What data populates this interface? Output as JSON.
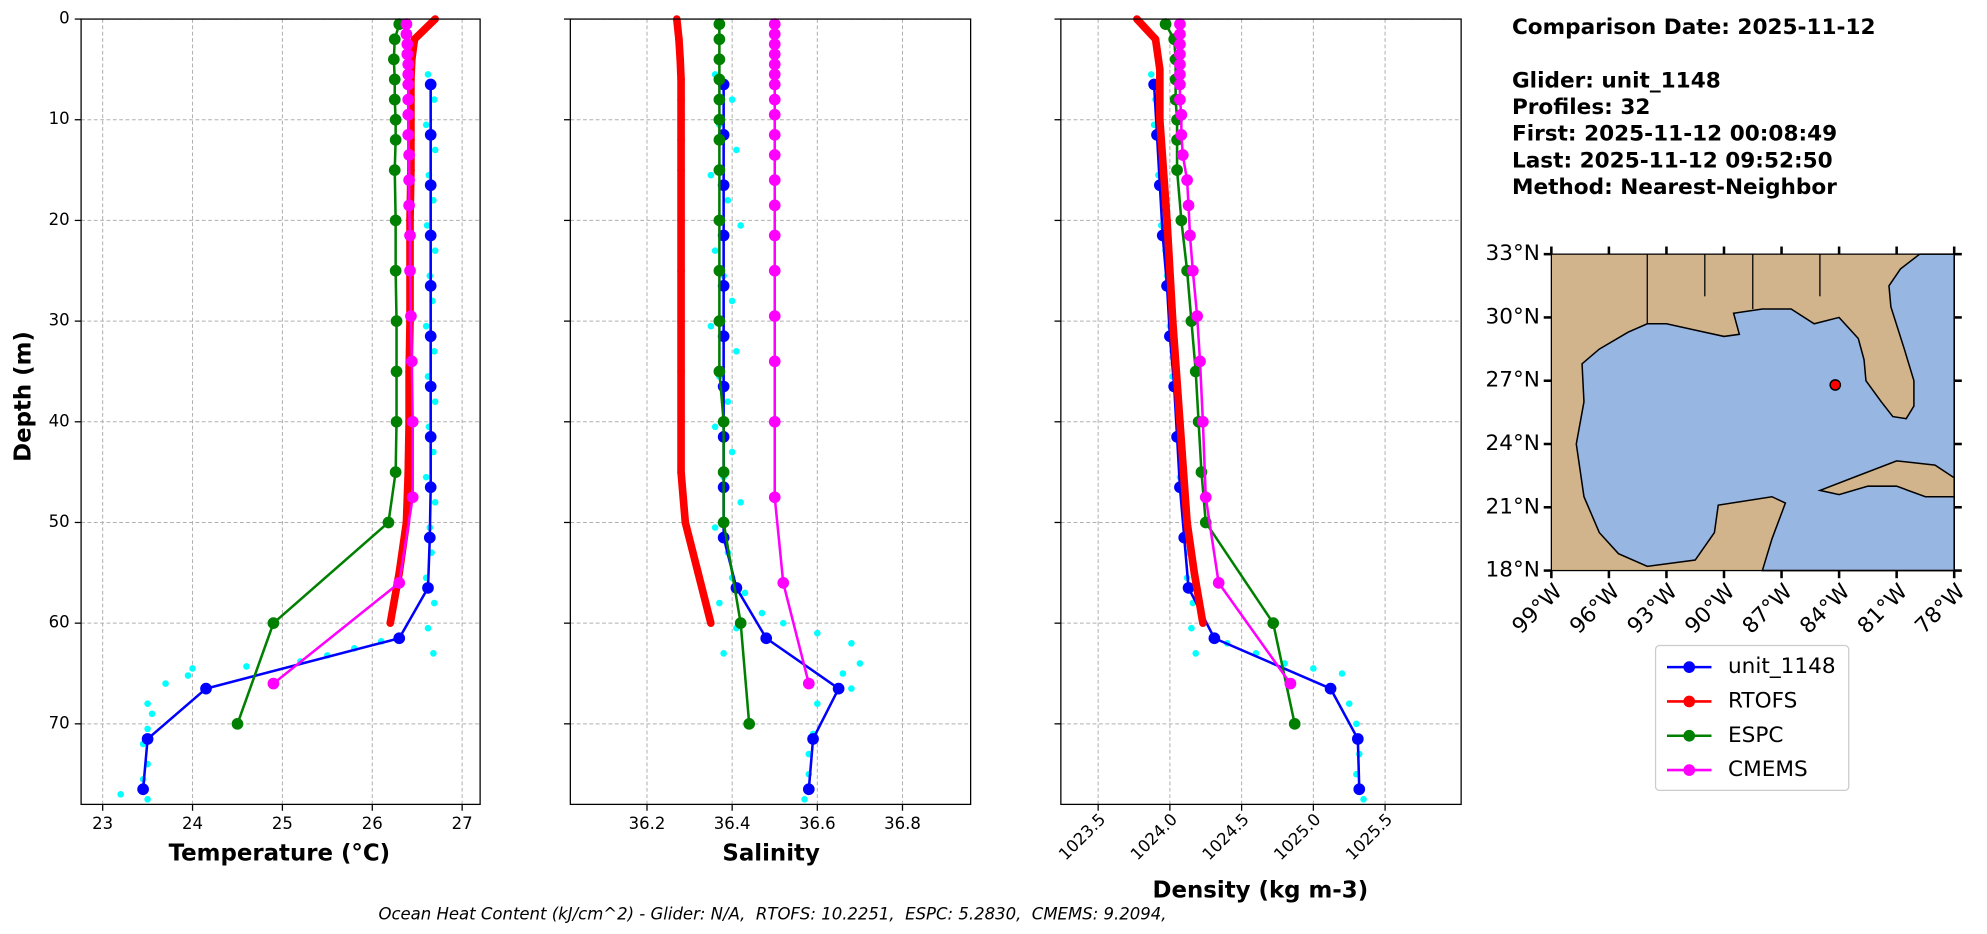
{
  "chart_data": [
    {
      "type": "line",
      "xlabel": "Temperature (°C)",
      "ylabel": "Depth (m)",
      "xlim": [
        22.76,
        27.2
      ],
      "xticks": [
        23,
        24,
        25,
        26,
        27
      ],
      "ylim": [
        78,
        0
      ],
      "yticks": [
        0,
        10,
        20,
        30,
        40,
        50,
        60,
        70
      ],
      "grid": true,
      "points": {
        "color": "#00ffff",
        "x": [
          26.62,
          26.69,
          26.6,
          26.7,
          26.63,
          26.68,
          26.61,
          26.7,
          26.64,
          26.67,
          26.6,
          26.69,
          26.62,
          26.7,
          26.63,
          26.68,
          26.6,
          26.7,
          26.64,
          26.66,
          26.6,
          26.69,
          26.62,
          26.68,
          26.1,
          25.8,
          25.5,
          25.2,
          24.6,
          24.0,
          23.95,
          23.7,
          23.5,
          23.55,
          23.5,
          23.45,
          23.5,
          23.45,
          23.2,
          23.5
        ],
        "y": [
          5.5,
          8,
          10.5,
          13,
          15.5,
          18,
          20.5,
          23,
          25.5,
          28,
          30.5,
          33,
          35.5,
          38,
          40.5,
          43,
          45.5,
          48,
          50.5,
          53,
          55.5,
          58,
          60.5,
          63,
          61.8,
          62.5,
          63.2,
          63.8,
          64.3,
          64.5,
          65.2,
          66,
          68,
          69,
          70.5,
          72,
          74,
          75.5,
          77,
          77.5
        ]
      },
      "series": [
        {
          "name": "unit_1148",
          "color": "#0000ff",
          "y": [
            6.5,
            11.5,
            16.5,
            21.5,
            26.5,
            31.5,
            36.5,
            41.5,
            46.5,
            51.5,
            56.5,
            61.5,
            66.5,
            71.5,
            76.5
          ],
          "values": [
            26.65,
            26.65,
            26.65,
            26.65,
            26.65,
            26.65,
            26.65,
            26.65,
            26.65,
            26.64,
            26.62,
            26.3,
            24.15,
            23.5,
            23.45
          ]
        },
        {
          "name": "RTOFS",
          "color": "#ff0000",
          "y": [
            0,
            2,
            4,
            6,
            8,
            10,
            12,
            15,
            20,
            25,
            30,
            35,
            40,
            45,
            50,
            55,
            60
          ],
          "values": [
            26.7,
            26.47,
            26.44,
            26.43,
            26.43,
            26.43,
            26.43,
            26.43,
            26.42,
            26.42,
            26.42,
            26.41,
            26.41,
            26.4,
            26.38,
            26.3,
            26.2
          ]
        },
        {
          "name": "ESPC",
          "color": "#008000",
          "y": [
            0.5,
            2,
            4,
            6,
            8,
            10,
            12,
            15,
            20,
            25,
            30,
            35,
            40,
            45,
            50,
            60,
            70
          ],
          "values": [
            26.3,
            26.25,
            26.24,
            26.25,
            26.25,
            26.26,
            26.26,
            26.25,
            26.26,
            26.26,
            26.27,
            26.27,
            26.27,
            26.26,
            26.18,
            24.9,
            24.5
          ]
        },
        {
          "name": "CMEMS",
          "color": "#ff00ff",
          "y": [
            0.5,
            1.5,
            2.5,
            3.5,
            4.5,
            5.5,
            6.5,
            8,
            9.5,
            11.5,
            13.5,
            16,
            18.5,
            21.5,
            25,
            29.5,
            34,
            40,
            47.5,
            56,
            66
          ],
          "values": [
            26.38,
            26.38,
            26.39,
            26.39,
            26.4,
            26.4,
            26.4,
            26.4,
            26.4,
            26.4,
            26.41,
            26.41,
            26.41,
            26.42,
            26.42,
            26.43,
            26.44,
            26.45,
            26.45,
            26.3,
            24.9
          ]
        }
      ]
    },
    {
      "type": "line",
      "xlabel": "Salinity",
      "xlim": [
        36.02,
        36.96
      ],
      "xticks": [
        36.2,
        36.4,
        36.6,
        36.8
      ],
      "ylim": [
        78,
        0
      ],
      "yticks": [
        0,
        10,
        20,
        30,
        40,
        50,
        60,
        70
      ],
      "grid": true,
      "points": {
        "color": "#00ffff",
        "x": [
          36.36,
          36.4,
          36.37,
          36.41,
          36.35,
          36.39,
          36.42,
          36.36,
          36.38,
          36.4,
          36.35,
          36.41,
          36.37,
          36.39,
          36.36,
          36.4,
          36.38,
          36.42,
          36.36,
          36.39,
          36.4,
          36.37,
          36.41,
          36.38,
          36.43,
          36.47,
          36.52,
          36.6,
          36.68,
          36.7,
          36.66,
          36.68,
          36.6,
          36.59,
          36.58,
          36.58,
          36.57
        ],
        "y": [
          5.5,
          8,
          10.5,
          13,
          15.5,
          18,
          20.5,
          23,
          25.5,
          28,
          30.5,
          33,
          35.5,
          38,
          40.5,
          43,
          45.5,
          48,
          50.5,
          53,
          55.5,
          58,
          60.5,
          63,
          57,
          59,
          60,
          61,
          62,
          64,
          65,
          66.5,
          68,
          71,
          73,
          75,
          77.5
        ]
      },
      "series": [
        {
          "color": "#0000ff",
          "y": [
            6.5,
            11.5,
            16.5,
            21.5,
            26.5,
            31.5,
            36.5,
            41.5,
            46.5,
            51.5,
            56.5,
            61.5,
            66.5,
            71.5,
            76.5
          ],
          "values": [
            36.38,
            36.38,
            36.38,
            36.38,
            36.38,
            36.38,
            36.38,
            36.38,
            36.38,
            36.38,
            36.41,
            36.48,
            36.65,
            36.59,
            36.58
          ]
        },
        {
          "color": "#ff0000",
          "y": [
            0,
            2,
            4,
            6,
            8,
            10,
            12,
            15,
            20,
            25,
            30,
            35,
            40,
            45,
            50,
            55,
            60
          ],
          "values": [
            36.27,
            36.275,
            36.278,
            36.28,
            36.28,
            36.28,
            36.28,
            36.28,
            36.28,
            36.28,
            36.28,
            36.28,
            36.28,
            36.28,
            36.29,
            36.32,
            36.35
          ]
        },
        {
          "color": "#008000",
          "y": [
            0.5,
            2,
            4,
            6,
            8,
            10,
            12,
            15,
            20,
            25,
            30,
            35,
            40,
            45,
            50,
            60,
            70
          ],
          "values": [
            36.37,
            36.37,
            36.37,
            36.37,
            36.37,
            36.37,
            36.37,
            36.37,
            36.37,
            36.37,
            36.37,
            36.37,
            36.38,
            36.38,
            36.38,
            36.42,
            36.44
          ]
        },
        {
          "color": "#ff00ff",
          "y": [
            0.5,
            1.5,
            2.5,
            3.5,
            4.5,
            5.5,
            6.5,
            8,
            9.5,
            11.5,
            13.5,
            16,
            18.5,
            21.5,
            25,
            29.5,
            34,
            40,
            47.5,
            56,
            66
          ],
          "values": [
            36.5,
            36.5,
            36.5,
            36.5,
            36.5,
            36.5,
            36.5,
            36.5,
            36.5,
            36.5,
            36.5,
            36.5,
            36.5,
            36.5,
            36.5,
            36.5,
            36.5,
            36.5,
            36.5,
            36.52,
            36.58
          ]
        }
      ]
    },
    {
      "type": "line",
      "xlabel": "Density (kg m-3)",
      "xlim": [
        1023.24,
        1026.03
      ],
      "xticks": [
        1023.5,
        {
          "value": 1024,
          "label": "1024.0"
        },
        1024.5,
        {
          "value": 1025,
          "label": "1025.0"
        },
        1025.5
      ],
      "ylim": [
        78,
        0
      ],
      "yticks": [
        0,
        10,
        20,
        30,
        40,
        50,
        60,
        70
      ],
      "grid": true,
      "points": {
        "color": "#00ffff",
        "x": [
          1023.87,
          1023.9,
          1023.89,
          1023.93,
          1023.92,
          1023.95,
          1023.94,
          1023.97,
          1023.98,
          1024.0,
          1024.0,
          1024.03,
          1024.02,
          1024.05,
          1024.06,
          1024.08,
          1024.07,
          1024.1,
          1024.11,
          1024.13,
          1024.12,
          1024.16,
          1024.15,
          1024.18,
          1024.4,
          1024.6,
          1024.8,
          1025.0,
          1025.2,
          1025.25,
          1025.3,
          1025.32,
          1025.3,
          1025.35
        ],
        "y": [
          5.5,
          8,
          10.5,
          13,
          15.5,
          18,
          20.5,
          23,
          25.5,
          28,
          30.5,
          33,
          35.5,
          38,
          40.5,
          43,
          45.5,
          48,
          50.5,
          53,
          55.5,
          58,
          60.5,
          63,
          62,
          63,
          64,
          64.5,
          65,
          68,
          70,
          73,
          75,
          77.5
        ]
      },
      "series": [
        {
          "color": "#0000ff",
          "y": [
            6.5,
            11.5,
            16.5,
            21.5,
            26.5,
            31.5,
            36.5,
            41.5,
            46.5,
            51.5,
            56.5,
            61.5,
            66.5,
            71.5,
            76.5
          ],
          "values": [
            1023.89,
            1023.91,
            1023.93,
            1023.95,
            1023.98,
            1024.0,
            1024.03,
            1024.05,
            1024.07,
            1024.1,
            1024.13,
            1024.31,
            1025.12,
            1025.31,
            1025.32
          ]
        },
        {
          "color": "#ff0000",
          "y": [
            0,
            2,
            5,
            10,
            20,
            30,
            40,
            50,
            55,
            60
          ],
          "values": [
            1023.77,
            1023.9,
            1023.93,
            1023.93,
            1023.98,
            1024.02,
            1024.07,
            1024.12,
            1024.17,
            1024.23
          ]
        },
        {
          "color": "#008000",
          "y": [
            0.5,
            2,
            4,
            6,
            8,
            10,
            12,
            15,
            20,
            25,
            30,
            35,
            40,
            45,
            50,
            60,
            70
          ],
          "values": [
            1023.97,
            1024.03,
            1024.04,
            1024.04,
            1024.04,
            1024.05,
            1024.05,
            1024.05,
            1024.08,
            1024.12,
            1024.15,
            1024.18,
            1024.2,
            1024.22,
            1024.25,
            1024.72,
            1024.87
          ]
        },
        {
          "color": "#ff00ff",
          "y": [
            0.5,
            1.5,
            2.5,
            3.5,
            4.5,
            5.5,
            6.5,
            8,
            9.5,
            11.5,
            13.5,
            16,
            18.5,
            21.5,
            25,
            29.5,
            34,
            40,
            47.5,
            56,
            66
          ],
          "values": [
            1024.07,
            1024.07,
            1024.07,
            1024.07,
            1024.07,
            1024.07,
            1024.07,
            1024.07,
            1024.08,
            1024.08,
            1024.09,
            1024.12,
            1024.13,
            1024.14,
            1024.16,
            1024.19,
            1024.21,
            1024.23,
            1024.25,
            1024.34,
            1024.84
          ]
        }
      ]
    }
  ],
  "info": [
    "Comparison Date: 2025-11-12",
    "Glider: unit_1148",
    "Profiles: 32",
    "First: 2025-11-12 00:08:49",
    "Last: 2025-11-12 09:52:50",
    "Method: Nearest-Neighbor"
  ],
  "map": {
    "type": "map",
    "xlim": [
      -99,
      -78
    ],
    "ylim": [
      18,
      33
    ],
    "xticks": [
      {
        "value": -99,
        "label": "99°W"
      },
      {
        "value": -96,
        "label": "96°W"
      },
      {
        "value": -93,
        "label": "93°W"
      },
      {
        "value": -90,
        "label": "90°W"
      },
      {
        "value": -87,
        "label": "87°W"
      },
      {
        "value": -84,
        "label": "84°W"
      },
      {
        "value": -81,
        "label": "81°W"
      },
      {
        "value": -78,
        "label": "78°W"
      }
    ],
    "yticks": [
      {
        "value": 18,
        "label": "18°N"
      },
      {
        "value": 21,
        "label": "21°N"
      },
      {
        "value": 24,
        "label": "24°N"
      },
      {
        "value": 27,
        "label": "27°N"
      },
      {
        "value": 30,
        "label": "30°N"
      },
      {
        "value": 33,
        "label": "33°N"
      }
    ],
    "point": {
      "x": -84.2,
      "y": 26.8,
      "color": "#ff0000"
    }
  },
  "caption": "Ocean Heat Content (kJ/cm^2) - Glider: N/A,  RTOFS: 10.2251,  ESPC: 5.2830,  CMEMS: 9.2094,"
}
